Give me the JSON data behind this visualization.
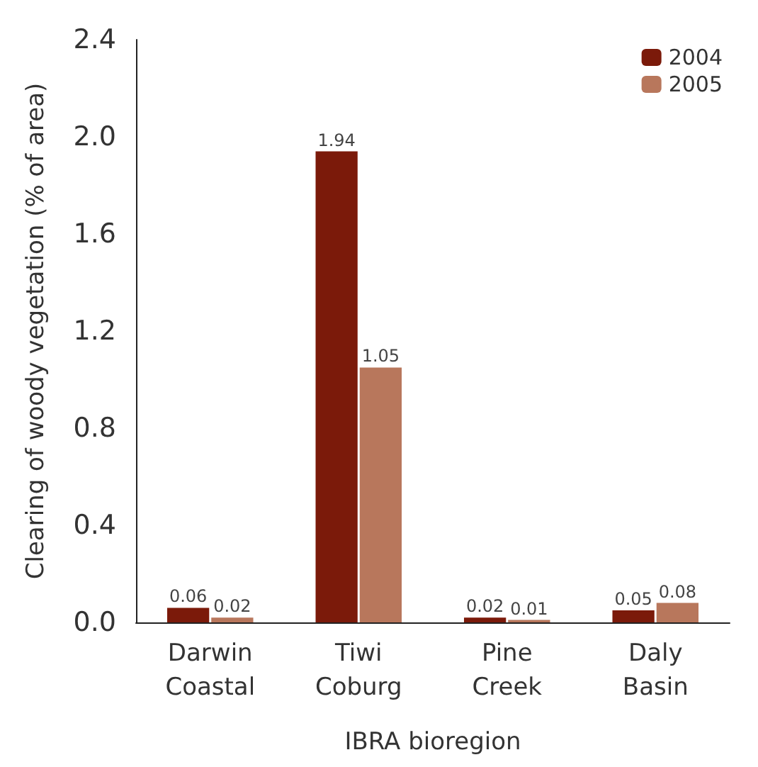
{
  "chart_data": {
    "type": "bar",
    "xlabel": "IBRA bioregion",
    "ylabel": "Clearing of woody vegetation (% of area)",
    "categories": [
      "Darwin\nCoastal",
      "Tiwi\nCoburg",
      "Pine\nCreek",
      "Daly\nBasin"
    ],
    "series": [
      {
        "name": "2004",
        "color": "#7b1a0a",
        "values": [
          0.06,
          1.94,
          0.02,
          0.05
        ]
      },
      {
        "name": "2005",
        "color": "#b8775c",
        "values": [
          0.02,
          1.05,
          0.01,
          0.08
        ]
      }
    ],
    "ylim": [
      0,
      2.4
    ],
    "yticks": [
      {
        "value": 0,
        "label": "0.0"
      },
      {
        "value": 0.4,
        "label": "0.4"
      },
      {
        "value": 0.8,
        "label": "0.8"
      },
      {
        "value": 1.2,
        "label": "1.2"
      },
      {
        "value": 1.6,
        "label": "1.6"
      },
      {
        "value": 2,
        "label": "2.0"
      },
      {
        "value": 2.4,
        "label": "2.4"
      }
    ],
    "data_labels": true,
    "legend": "top right",
    "grid": false
  }
}
